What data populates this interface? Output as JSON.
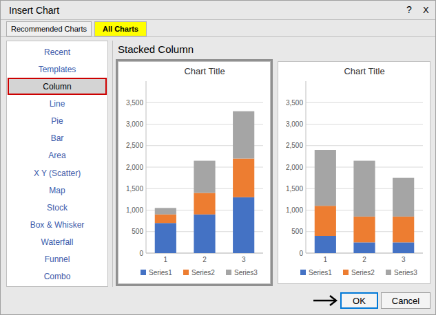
{
  "dialog": {
    "title": "Insert Chart",
    "help": "?",
    "close": "X",
    "tabs": [
      "Recommended Charts",
      "All Charts"
    ],
    "active_tab": "All Charts",
    "active_tab_color": "#ffff00",
    "chart_types": [
      "Recent",
      "Templates",
      "Column",
      "Line",
      "Pie",
      "Bar",
      "Area",
      "X Y (Scatter)",
      "Map",
      "Stock",
      "Box & Whisker",
      "Waterfall",
      "Funnel",
      "Combo"
    ],
    "selected_type": "Column",
    "selected_color": "#cc0000",
    "selected_bg": "#d4d4d4",
    "section_label": "Stacked Column",
    "buttons": [
      "OK",
      "Cancel"
    ],
    "default_button_color": "#0078d7",
    "background": "#e8e8e8"
  },
  "chart_data": [
    {
      "type": "bar",
      "stacked": true,
      "title": "Chart Title",
      "categories": [
        "1",
        "2",
        "3"
      ],
      "series": [
        {
          "name": "Series1",
          "color": "#4472c4",
          "values": [
            700,
            900,
            1300
          ]
        },
        {
          "name": "Series2",
          "color": "#ed7d31",
          "values": [
            200,
            500,
            900
          ]
        },
        {
          "name": "Series3",
          "color": "#a5a5a5",
          "values": [
            150,
            750,
            1100
          ]
        }
      ],
      "ylim": [
        0,
        4000
      ],
      "yticks": [
        0,
        500,
        {
          "value": 1000,
          "label": "1,000"
        },
        {
          "value": 1500,
          "label": "1,500"
        },
        {
          "value": 2000,
          "label": "2,000"
        },
        {
          "value": 2500,
          "label": "2,500"
        },
        {
          "value": 3000,
          "label": "3,000"
        },
        {
          "value": 3500,
          "label": "3,500"
        }
      ],
      "grid": true,
      "legend": "bottom"
    },
    {
      "type": "bar",
      "stacked": true,
      "title": "Chart Title",
      "categories": [
        "1",
        "2",
        "3"
      ],
      "series": [
        {
          "name": "Series1",
          "color": "#4472c4",
          "values": [
            400,
            250,
            250
          ]
        },
        {
          "name": "Series2",
          "color": "#ed7d31",
          "values": [
            700,
            600,
            600
          ]
        },
        {
          "name": "Series3",
          "color": "#a5a5a5",
          "values": [
            1300,
            1300,
            900
          ]
        }
      ],
      "ylim": [
        0,
        4000
      ],
      "yticks": [
        0,
        500,
        {
          "value": 1000,
          "label": "1,000"
        },
        {
          "value": 1500,
          "label": "1,500"
        },
        {
          "value": 2000,
          "label": "2,000"
        },
        {
          "value": 2500,
          "label": "2,500"
        },
        {
          "value": 3000,
          "label": "3,000"
        },
        {
          "value": 3500,
          "label": "3,500"
        }
      ],
      "grid": true,
      "legend": "bottom"
    }
  ]
}
